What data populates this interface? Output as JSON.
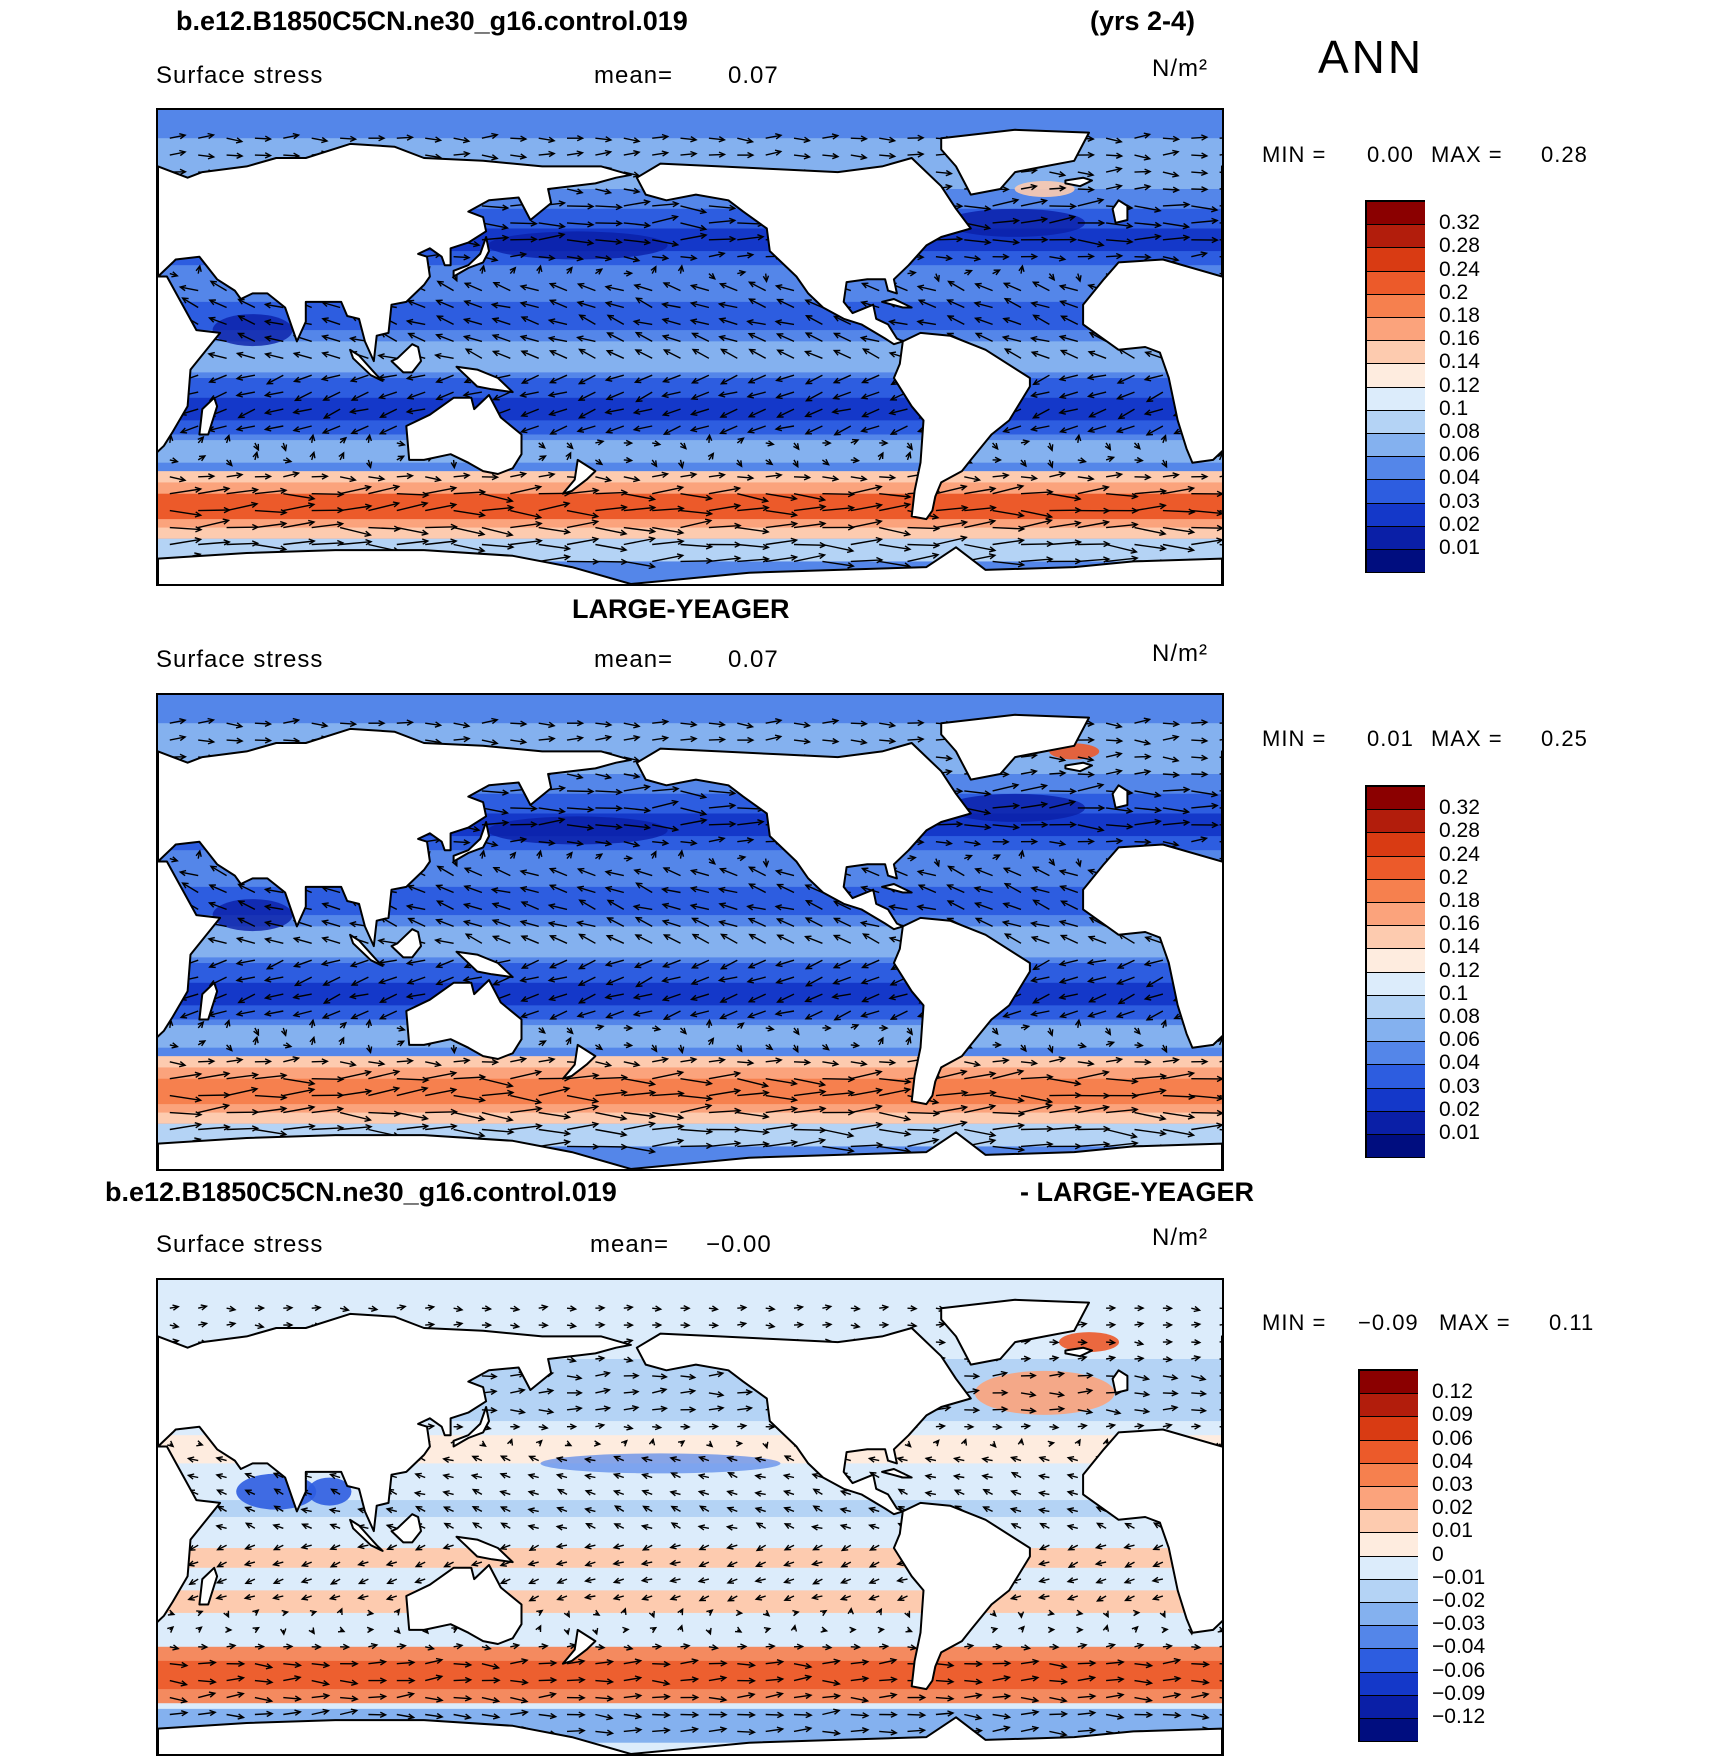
{
  "header": {
    "case_name": "b.e12.B1850C5CN.ne30_g16.control.019",
    "years": "(yrs 2-4)",
    "season": "ANN"
  },
  "panels": [
    {
      "title": "",
      "variable": "Surface stress",
      "mean_label": "mean=",
      "mean_value": "0.07",
      "units": "N/m²",
      "min_label": "MIN =",
      "min_value": "0.00",
      "max_label": "MAX =",
      "max_value": "0.28",
      "pattern": "model",
      "colorbar_ticks": [
        "0.32",
        "0.28",
        "0.24",
        "0.2",
        "0.18",
        "0.16",
        "0.14",
        "0.12",
        "0.1",
        "0.08",
        "0.06",
        "0.04",
        "0.03",
        "0.02",
        "0.01"
      ]
    },
    {
      "title": "LARGE-YEAGER",
      "variable": "Surface stress",
      "mean_label": "mean=",
      "mean_value": "0.07",
      "units": "N/m²",
      "min_label": "MIN =",
      "min_value": "0.01",
      "max_label": "MAX =",
      "max_value": "0.25",
      "pattern": "obs",
      "colorbar_ticks": [
        "0.32",
        "0.28",
        "0.24",
        "0.2",
        "0.18",
        "0.16",
        "0.14",
        "0.12",
        "0.1",
        "0.08",
        "0.06",
        "0.04",
        "0.03",
        "0.02",
        "0.01"
      ]
    },
    {
      "title_left": "b.e12.B1850C5CN.ne30_g16.control.019",
      "title_right": "- LARGE-YEAGER",
      "variable": "Surface stress",
      "mean_label": "mean=",
      "mean_value": "−0.00",
      "units": "N/m²",
      "min_label": "MIN =",
      "min_value": "−0.09",
      "max_label": "MAX =",
      "max_value": "0.11",
      "pattern": "diff",
      "colorbar_ticks": [
        "0.12",
        "0.09",
        "0.06",
        "0.04",
        "0.03",
        "0.02",
        "0.01",
        "0",
        "−0.01",
        "−0.02",
        "−0.03",
        "−0.04",
        "−0.06",
        "−0.09",
        "−0.12"
      ]
    }
  ],
  "colors": {
    "abs_scale": [
      "#8b0000",
      "#b21d0c",
      "#d93b13",
      "#ec5a2a",
      "#f6804e",
      "#fba37c",
      "#fdcbaf",
      "#feecdf",
      "#dcecfb",
      "#b4d3f5",
      "#84b1ef",
      "#5486e9",
      "#2d5de0",
      "#1438c9",
      "#0a1fa7",
      "#000d7f"
    ],
    "diff_scale": [
      "#8b0000",
      "#b21d0c",
      "#d93b13",
      "#ec5a2a",
      "#f6804e",
      "#fba37c",
      "#fdcbaf",
      "#feecdf",
      "#dcecfb",
      "#b4d3f5",
      "#84b1ef",
      "#5486e9",
      "#2d5de0",
      "#1438c9",
      "#0a1fa7",
      "#000d7f"
    ],
    "land": "#ffffff",
    "coast": "#000000"
  }
}
